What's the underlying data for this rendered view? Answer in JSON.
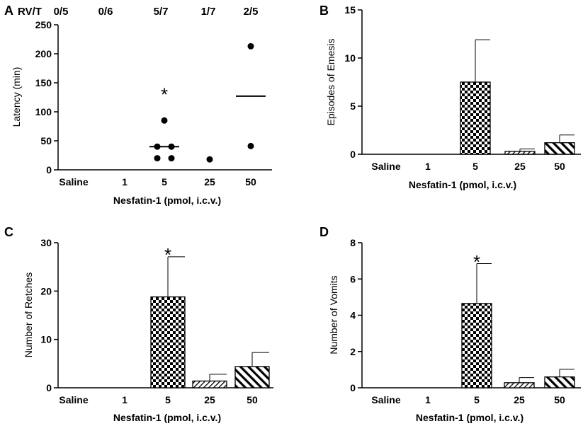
{
  "chart_data": [
    {
      "panel": "A",
      "type": "scatter",
      "ylabel": "Latency (min)",
      "xlabel": "Nesfatin-1 (pmol, i.c.v.)",
      "categories": [
        "Saline",
        "1",
        "5",
        "25",
        "50"
      ],
      "ylim": [
        0,
        250
      ],
      "yticks": [
        "0",
        "50",
        "100",
        "150",
        "200",
        "250"
      ],
      "header_label": "RV/T",
      "header_values": [
        "0/5",
        "0/6",
        "5/7",
        "1/7",
        "2/5"
      ],
      "points": [
        {
          "category": "5",
          "values": [
            85,
            40,
            40,
            20,
            20
          ]
        },
        {
          "category": "25",
          "values": [
            18
          ]
        },
        {
          "category": "50",
          "values": [
            213,
            41
          ]
        }
      ],
      "medians": [
        {
          "category": "5",
          "value": 40
        },
        {
          "category": "50",
          "value": 127
        }
      ],
      "annotations": [
        {
          "category": "5",
          "value": 130,
          "text": "*"
        }
      ]
    },
    {
      "panel": "B",
      "type": "bar",
      "ylabel": "Episodes of Emesis",
      "xlabel": "Nesfatin-1 (pmol, i.c.v.)",
      "categories": [
        "Saline",
        "1",
        "5",
        "25",
        "50"
      ],
      "ylim": [
        0,
        15
      ],
      "yticks": [
        "0",
        "5",
        "10",
        "15"
      ],
      "values": [
        0,
        0,
        7.5,
        0.3,
        1.2
      ],
      "errors": [
        0,
        0,
        4.4,
        0.25,
        0.8
      ],
      "annotations": []
    },
    {
      "panel": "C",
      "type": "bar",
      "ylabel": "Number of Retches",
      "xlabel": "Nesfatin-1 (pmol, i.c.v.)",
      "categories": [
        "Saline",
        "1",
        "5",
        "25",
        "50"
      ],
      "ylim": [
        0,
        30
      ],
      "yticks": [
        "0",
        "10",
        "20",
        "30"
      ],
      "values": [
        0,
        0,
        18.8,
        1.4,
        4.4
      ],
      "errors": [
        0,
        0,
        8.3,
        1.4,
        2.9
      ],
      "annotations": [
        {
          "category": "5",
          "value": 27.5,
          "text": "*"
        }
      ]
    },
    {
      "panel": "D",
      "type": "bar",
      "ylabel": "Number of Vomits",
      "xlabel": "Nesfatin-1 (pmol, i.c.v.)",
      "categories": [
        "Saline",
        "1",
        "5",
        "25",
        "50"
      ],
      "ylim": [
        0,
        8
      ],
      "yticks": [
        "0",
        "2",
        "4",
        "6",
        "8"
      ],
      "values": [
        0,
        0,
        4.65,
        0.28,
        0.6
      ],
      "errors": [
        0,
        0,
        2.2,
        0.28,
        0.42
      ],
      "annotations": [
        {
          "category": "5",
          "value": 6.95,
          "text": "*"
        }
      ]
    }
  ]
}
